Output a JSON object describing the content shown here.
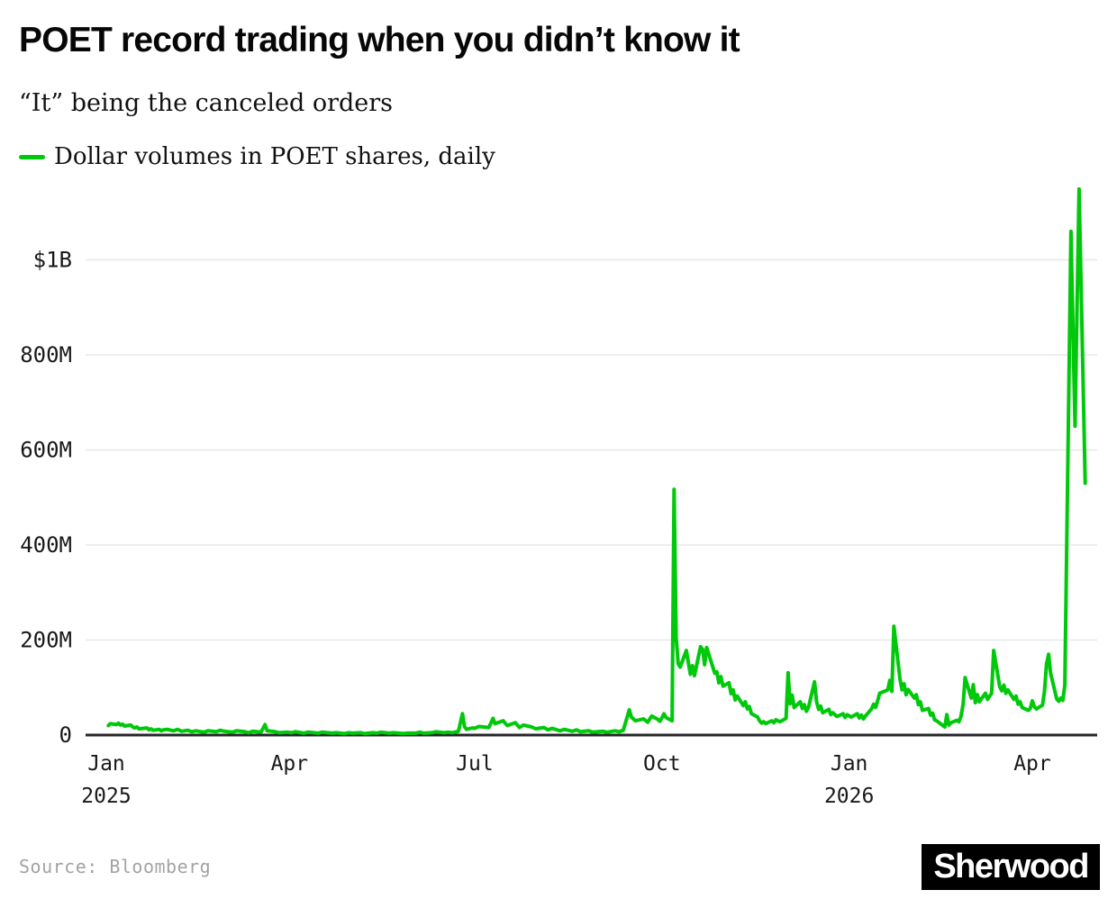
{
  "header": {
    "title": "POET record trading when you didn’t know it",
    "subtitle": "“It” being the canceled orders"
  },
  "legend": {
    "label": "Dollar volumes in POET shares, daily",
    "color": "#00c80a"
  },
  "footer": {
    "source": "Source: Bloomberg",
    "brand": "Sherwood"
  },
  "chart_data": {
    "type": "line",
    "title": "POET record trading when you didn’t know it",
    "series_name": "Dollar volumes in POET shares, daily",
    "unit": "USD, millions",
    "line_color": "#00c80a",
    "grid_color": "#e8e8e8",
    "axis_color": "#26262a",
    "tick_text_color": "#191919",
    "ylim": [
      0,
      1160
    ],
    "grid": true,
    "legend_position": "top-left",
    "y_ticks": [
      {
        "value": 0,
        "label": "0"
      },
      {
        "value": 200,
        "label": "200M"
      },
      {
        "value": 400,
        "label": "400M"
      },
      {
        "value": 600,
        "label": "600M"
      },
      {
        "value": 800,
        "label": "800M"
      },
      {
        "value": 1000,
        "label": "$1B"
      }
    ],
    "x_ticks": [
      {
        "date": "2025-01-01",
        "label": "Jan",
        "year": "2025"
      },
      {
        "date": "2025-04-01",
        "label": "Apr",
        "year": ""
      },
      {
        "date": "2025-07-01",
        "label": "Jul",
        "year": ""
      },
      {
        "date": "2025-10-01",
        "label": "Oct",
        "year": ""
      },
      {
        "date": "2026-01-01",
        "label": "Jan",
        "year": "2026"
      },
      {
        "date": "2026-04-01",
        "label": "Apr",
        "year": ""
      }
    ],
    "points": [
      [
        "2025-01-02",
        20
      ],
      [
        "2025-01-03",
        24
      ],
      [
        "2025-01-06",
        22
      ],
      [
        "2025-01-07",
        25
      ],
      [
        "2025-01-08",
        21
      ],
      [
        "2025-01-09",
        23
      ],
      [
        "2025-01-10",
        19
      ],
      [
        "2025-01-13",
        21
      ],
      [
        "2025-01-14",
        17
      ],
      [
        "2025-01-15",
        15
      ],
      [
        "2025-01-16",
        17
      ],
      [
        "2025-01-17",
        13
      ],
      [
        "2025-01-21",
        15
      ],
      [
        "2025-01-22",
        11
      ],
      [
        "2025-01-23",
        13
      ],
      [
        "2025-01-24",
        10
      ],
      [
        "2025-01-27",
        12
      ],
      [
        "2025-01-28",
        9
      ],
      [
        "2025-01-29",
        11
      ],
      [
        "2025-01-31",
        12
      ],
      [
        "2025-02-03",
        9
      ],
      [
        "2025-02-05",
        12
      ],
      [
        "2025-02-07",
        8
      ],
      [
        "2025-02-10",
        10
      ],
      [
        "2025-02-12",
        7
      ],
      [
        "2025-02-14",
        9
      ],
      [
        "2025-02-18",
        6
      ],
      [
        "2025-02-20",
        9
      ],
      [
        "2025-02-24",
        7
      ],
      [
        "2025-02-26",
        10
      ],
      [
        "2025-02-28",
        8
      ],
      [
        "2025-03-04",
        6
      ],
      [
        "2025-03-06",
        9
      ],
      [
        "2025-03-10",
        7
      ],
      [
        "2025-03-12",
        5
      ],
      [
        "2025-03-14",
        8
      ],
      [
        "2025-03-18",
        6
      ],
      [
        "2025-03-20",
        22
      ],
      [
        "2025-03-21",
        9
      ],
      [
        "2025-03-25",
        7
      ],
      [
        "2025-03-27",
        5
      ],
      [
        "2025-03-31",
        6
      ],
      [
        "2025-04-02",
        5
      ],
      [
        "2025-04-04",
        7
      ],
      [
        "2025-04-08",
        4
      ],
      [
        "2025-04-10",
        6
      ],
      [
        "2025-04-15",
        4
      ],
      [
        "2025-04-17",
        6
      ],
      [
        "2025-04-22",
        4
      ],
      [
        "2025-04-24",
        5
      ],
      [
        "2025-04-28",
        3
      ],
      [
        "2025-04-30",
        5
      ],
      [
        "2025-05-02",
        4
      ],
      [
        "2025-05-06",
        5
      ],
      [
        "2025-05-08",
        3
      ],
      [
        "2025-05-12",
        5
      ],
      [
        "2025-05-14",
        4
      ],
      [
        "2025-05-16",
        6
      ],
      [
        "2025-05-20",
        4
      ],
      [
        "2025-05-22",
        5
      ],
      [
        "2025-05-27",
        3
      ],
      [
        "2025-05-29",
        4
      ],
      [
        "2025-06-02",
        4
      ],
      [
        "2025-06-04",
        6
      ],
      [
        "2025-06-06",
        4
      ],
      [
        "2025-06-10",
        5
      ],
      [
        "2025-06-12",
        7
      ],
      [
        "2025-06-16",
        5
      ],
      [
        "2025-06-18",
        6
      ],
      [
        "2025-06-20",
        5
      ],
      [
        "2025-06-23",
        8
      ],
      [
        "2025-06-25",
        45
      ],
      [
        "2025-06-26",
        18
      ],
      [
        "2025-06-27",
        12
      ],
      [
        "2025-06-30",
        15
      ],
      [
        "2025-07-01",
        14
      ],
      [
        "2025-07-03",
        18
      ],
      [
        "2025-07-08",
        16
      ],
      [
        "2025-07-10",
        35
      ],
      [
        "2025-07-11",
        24
      ],
      [
        "2025-07-15",
        30
      ],
      [
        "2025-07-17",
        20
      ],
      [
        "2025-07-21",
        26
      ],
      [
        "2025-07-23",
        16
      ],
      [
        "2025-07-25",
        21
      ],
      [
        "2025-07-29",
        17
      ],
      [
        "2025-07-31",
        13
      ],
      [
        "2025-08-04",
        16
      ],
      [
        "2025-08-06",
        11
      ],
      [
        "2025-08-08",
        14
      ],
      [
        "2025-08-12",
        9
      ],
      [
        "2025-08-14",
        12
      ],
      [
        "2025-08-18",
        8
      ],
      [
        "2025-08-20",
        11
      ],
      [
        "2025-08-22",
        7
      ],
      [
        "2025-08-26",
        9
      ],
      [
        "2025-08-28",
        6
      ],
      [
        "2025-09-02",
        8
      ],
      [
        "2025-09-04",
        6
      ],
      [
        "2025-09-08",
        9
      ],
      [
        "2025-09-10",
        7
      ],
      [
        "2025-09-12",
        10
      ],
      [
        "2025-09-15",
        53
      ],
      [
        "2025-09-16",
        38
      ],
      [
        "2025-09-18",
        30
      ],
      [
        "2025-09-22",
        34
      ],
      [
        "2025-09-24",
        27
      ],
      [
        "2025-09-26",
        40
      ],
      [
        "2025-09-29",
        33
      ],
      [
        "2025-09-30",
        29
      ],
      [
        "2025-10-01",
        36
      ],
      [
        "2025-10-02",
        45
      ],
      [
        "2025-10-03",
        37
      ],
      [
        "2025-10-06",
        30
      ],
      [
        "2025-10-07",
        517
      ],
      [
        "2025-10-08",
        205
      ],
      [
        "2025-10-09",
        150
      ],
      [
        "2025-10-10",
        143
      ],
      [
        "2025-10-13",
        178
      ],
      [
        "2025-10-14",
        152
      ],
      [
        "2025-10-15",
        128
      ],
      [
        "2025-10-16",
        146
      ],
      [
        "2025-10-17",
        125
      ],
      [
        "2025-10-20",
        186
      ],
      [
        "2025-10-21",
        180
      ],
      [
        "2025-10-22",
        148
      ],
      [
        "2025-10-23",
        184
      ],
      [
        "2025-10-24",
        170
      ],
      [
        "2025-10-27",
        130
      ],
      [
        "2025-10-28",
        133
      ],
      [
        "2025-10-29",
        110
      ],
      [
        "2025-10-30",
        123
      ],
      [
        "2025-10-31",
        103
      ],
      [
        "2025-11-03",
        110
      ],
      [
        "2025-11-04",
        87
      ],
      [
        "2025-11-05",
        95
      ],
      [
        "2025-11-06",
        74
      ],
      [
        "2025-11-07",
        82
      ],
      [
        "2025-11-10",
        62
      ],
      [
        "2025-11-11",
        70
      ],
      [
        "2025-11-12",
        55
      ],
      [
        "2025-11-13",
        60
      ],
      [
        "2025-11-14",
        45
      ],
      [
        "2025-11-17",
        38
      ],
      [
        "2025-11-18",
        30
      ],
      [
        "2025-11-19",
        25
      ],
      [
        "2025-11-20",
        28
      ],
      [
        "2025-11-21",
        24
      ],
      [
        "2025-11-24",
        30
      ],
      [
        "2025-11-25",
        26
      ],
      [
        "2025-11-26",
        32
      ],
      [
        "2025-11-28",
        28
      ],
      [
        "2025-12-01",
        35
      ],
      [
        "2025-12-02",
        131
      ],
      [
        "2025-12-03",
        66
      ],
      [
        "2025-12-04",
        84
      ],
      [
        "2025-12-05",
        58
      ],
      [
        "2025-12-08",
        70
      ],
      [
        "2025-12-09",
        56
      ],
      [
        "2025-12-10",
        64
      ],
      [
        "2025-12-11",
        50
      ],
      [
        "2025-12-12",
        58
      ],
      [
        "2025-12-15",
        112
      ],
      [
        "2025-12-16",
        70
      ],
      [
        "2025-12-17",
        54
      ],
      [
        "2025-12-18",
        61
      ],
      [
        "2025-12-19",
        47
      ],
      [
        "2025-12-22",
        54
      ],
      [
        "2025-12-23",
        43
      ],
      [
        "2025-12-24",
        47
      ],
      [
        "2025-12-26",
        39
      ],
      [
        "2025-12-29",
        45
      ],
      [
        "2025-12-30",
        37
      ],
      [
        "2025-12-31",
        43
      ],
      [
        "2026-01-02",
        38
      ],
      [
        "2026-01-05",
        45
      ],
      [
        "2026-01-06",
        36
      ],
      [
        "2026-01-07",
        42
      ],
      [
        "2026-01-08",
        34
      ],
      [
        "2026-01-09",
        40
      ],
      [
        "2026-01-12",
        55
      ],
      [
        "2026-01-13",
        65
      ],
      [
        "2026-01-14",
        58
      ],
      [
        "2026-01-15",
        72
      ],
      [
        "2026-01-16",
        88
      ],
      [
        "2026-01-20",
        95
      ],
      [
        "2026-01-21",
        115
      ],
      [
        "2026-01-22",
        92
      ],
      [
        "2026-01-23",
        229
      ],
      [
        "2026-01-26",
        118
      ],
      [
        "2026-01-27",
        95
      ],
      [
        "2026-01-28",
        108
      ],
      [
        "2026-01-29",
        85
      ],
      [
        "2026-01-30",
        96
      ],
      [
        "2026-02-02",
        78
      ],
      [
        "2026-02-03",
        85
      ],
      [
        "2026-02-04",
        64
      ],
      [
        "2026-02-05",
        70
      ],
      [
        "2026-02-06",
        52
      ],
      [
        "2026-02-09",
        56
      ],
      [
        "2026-02-10",
        42
      ],
      [
        "2026-02-11",
        46
      ],
      [
        "2026-02-12",
        32
      ],
      [
        "2026-02-13",
        30
      ],
      [
        "2026-02-17",
        17
      ],
      [
        "2026-02-18",
        43
      ],
      [
        "2026-02-19",
        21
      ],
      [
        "2026-02-20",
        26
      ],
      [
        "2026-02-23",
        31
      ],
      [
        "2026-02-24",
        28
      ],
      [
        "2026-02-25",
        40
      ],
      [
        "2026-02-26",
        65
      ],
      [
        "2026-02-27",
        121
      ],
      [
        "2026-03-02",
        78
      ],
      [
        "2026-03-03",
        106
      ],
      [
        "2026-03-04",
        68
      ],
      [
        "2026-03-05",
        85
      ],
      [
        "2026-03-06",
        70
      ],
      [
        "2026-03-09",
        88
      ],
      [
        "2026-03-10",
        75
      ],
      [
        "2026-03-12",
        88
      ],
      [
        "2026-03-13",
        178
      ],
      [
        "2026-03-16",
        102
      ],
      [
        "2026-03-17",
        93
      ],
      [
        "2026-03-18",
        105
      ],
      [
        "2026-03-19",
        88
      ],
      [
        "2026-03-20",
        95
      ],
      [
        "2026-03-23",
        75
      ],
      [
        "2026-03-24",
        82
      ],
      [
        "2026-03-25",
        65
      ],
      [
        "2026-03-26",
        70
      ],
      [
        "2026-03-27",
        58
      ],
      [
        "2026-03-30",
        52
      ],
      [
        "2026-03-31",
        56
      ],
      [
        "2026-04-01",
        72
      ],
      [
        "2026-04-02",
        60
      ],
      [
        "2026-04-03",
        55
      ],
      [
        "2026-04-06",
        63
      ],
      [
        "2026-04-07",
        92
      ],
      [
        "2026-04-08",
        150
      ],
      [
        "2026-04-09",
        170
      ],
      [
        "2026-04-10",
        130
      ],
      [
        "2026-04-13",
        76
      ],
      [
        "2026-04-14",
        71
      ],
      [
        "2026-04-15",
        78
      ],
      [
        "2026-04-16",
        73
      ],
      [
        "2026-04-17",
        105
      ],
      [
        "2026-04-20",
        1060
      ],
      [
        "2026-04-22",
        650
      ],
      [
        "2026-04-24",
        1149
      ],
      [
        "2026-04-27",
        530
      ]
    ]
  }
}
